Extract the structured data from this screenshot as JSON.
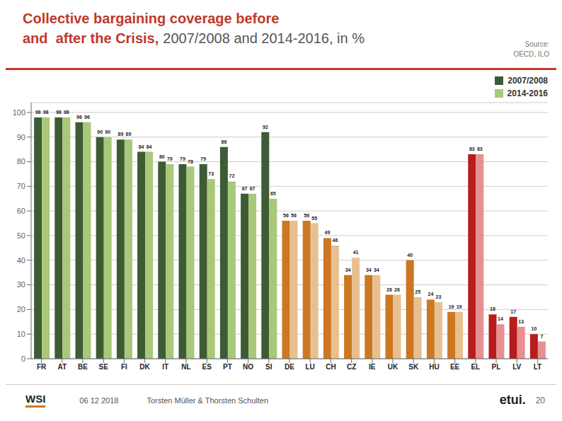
{
  "chart_data": {
    "type": "bar",
    "title": "Collective bargaining coverage before\nand  after the Crisis,",
    "subtitle": "2007/2008 and 2014-2016, in %",
    "categories": [
      "FR",
      "AT",
      "BE",
      "SE",
      "FI",
      "DK",
      "IT",
      "NL",
      "ES",
      "PT",
      "NO",
      "SI",
      "DE",
      "LU",
      "CH",
      "CZ",
      "IE",
      "UK",
      "SK",
      "HU",
      "EE",
      "EL",
      "PL",
      "LV",
      "LT"
    ],
    "series": [
      {
        "name": "2007/2008",
        "color": "#3d5c35",
        "values": [
          98,
          98,
          96,
          90,
          89,
          84,
          80,
          79,
          79,
          86,
          67,
          92,
          56,
          56,
          49,
          34,
          34,
          26,
          40,
          24,
          19,
          83,
          18,
          17,
          10
        ],
        "colors": [
          "#3d5c35",
          "#3d5c35",
          "#3d5c35",
          "#3d5c35",
          "#3d5c35",
          "#3d5c35",
          "#3d5c35",
          "#3d5c35",
          "#3d5c35",
          "#3d5c35",
          "#3d5c35",
          "#3d5c35",
          "#cc7722",
          "#cc7722",
          "#cc7722",
          "#cc7722",
          "#cc7722",
          "#cc7722",
          "#cc7722",
          "#cc7722",
          "#cc7722",
          "#b81c1c",
          "#b81c1c",
          "#b81c1c",
          "#b81c1c"
        ]
      },
      {
        "name": "2014-2016",
        "color": "#a8c87a",
        "values": [
          98,
          98,
          96,
          90,
          89,
          84,
          79,
          78,
          73,
          72,
          67,
          65,
          56,
          55,
          46,
          41,
          34,
          26,
          25,
          23,
          19,
          83,
          14,
          13,
          7
        ],
        "colors": [
          "#a8c87a",
          "#a8c87a",
          "#a8c87a",
          "#a8c87a",
          "#a8c87a",
          "#a8c87a",
          "#a8c87a",
          "#a8c87a",
          "#a8c87a",
          "#a8c87a",
          "#a8c87a",
          "#a8c87a",
          "#e8c090",
          "#e8c090",
          "#e8c090",
          "#e8c090",
          "#e8c090",
          "#e8c090",
          "#e8c090",
          "#e8c090",
          "#e8c090",
          "#e89090",
          "#e89090",
          "#e89090",
          "#e89090"
        ]
      }
    ],
    "ylim": [
      0,
      104
    ],
    "yticks": [
      0,
      10,
      20,
      30,
      40,
      50,
      60,
      70,
      80,
      90,
      100
    ],
    "grid": true,
    "legend": "upper right",
    "data_labels": true,
    "annotations": [
      "Source:\nOECD, ILO",
      "WSI",
      "06 12 2018",
      "Torsten Müller & Thorsten Schulten",
      "etui.",
      "20"
    ]
  }
}
